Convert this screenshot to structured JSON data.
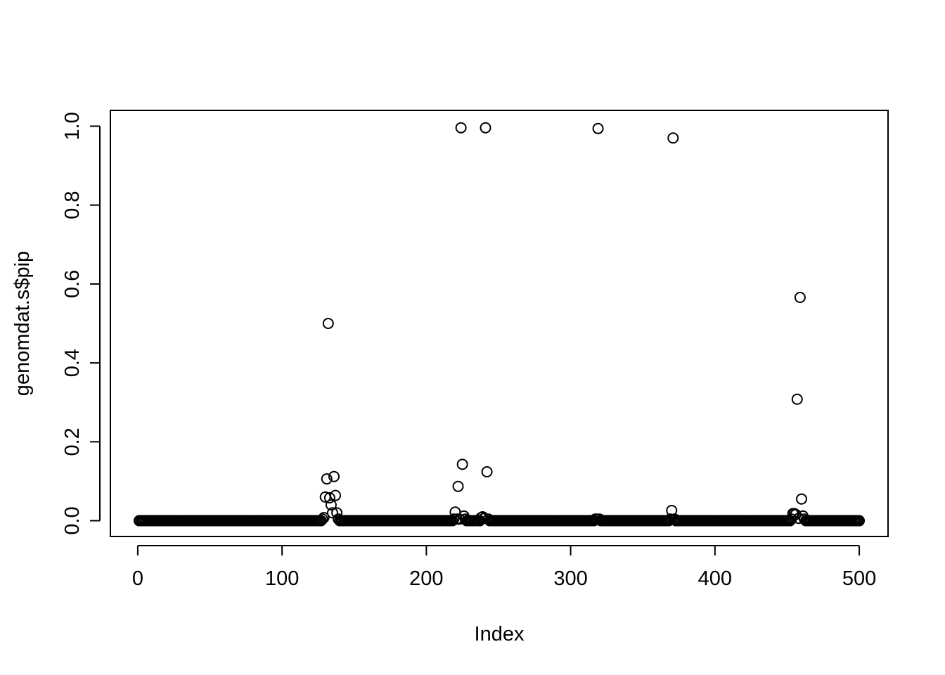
{
  "chart_data": {
    "type": "scatter",
    "title": "",
    "xlabel": "Index",
    "ylabel": "genomdat.s$pip",
    "xlim": [
      -18.96,
      519.96
    ],
    "ylim": [
      -0.04,
      1.04
    ],
    "x_ticks": [
      0,
      100,
      200,
      300,
      400,
      500
    ],
    "y_ticks": [
      0.0,
      0.2,
      0.4,
      0.6,
      0.8,
      1.0
    ],
    "x_tick_labels": [
      "0",
      "100",
      "200",
      "300",
      "400",
      "500"
    ],
    "y_tick_labels": [
      "0.0",
      "0.2",
      "0.4",
      "0.6",
      "0.8",
      "1.0"
    ],
    "grid": false,
    "legend": "none",
    "marker": "open-circle",
    "n_points": 500,
    "baseline_value": 0.0,
    "series": [
      {
        "points": [
          [
            128,
            0.004
          ],
          [
            129,
            0.008
          ],
          [
            130,
            0.06
          ],
          [
            131,
            0.106
          ],
          [
            132,
            0.5
          ],
          [
            133,
            0.058
          ],
          [
            134,
            0.04
          ],
          [
            135,
            0.02
          ],
          [
            136,
            0.112
          ],
          [
            137,
            0.064
          ],
          [
            138,
            0.02
          ],
          [
            139,
            0.004
          ],
          [
            219,
            0.004
          ],
          [
            220,
            0.022
          ],
          [
            221,
            0.004
          ],
          [
            222,
            0.087
          ],
          [
            223,
            0.004
          ],
          [
            224,
            0.996
          ],
          [
            225,
            0.143
          ],
          [
            226,
            0.012
          ],
          [
            227,
            0.004
          ],
          [
            238,
            0.008
          ],
          [
            239,
            0.01
          ],
          [
            240,
            0.006
          ],
          [
            241,
            0.996
          ],
          [
            242,
            0.124
          ],
          [
            243,
            0.004
          ],
          [
            317,
            0.004
          ],
          [
            318,
            0.004
          ],
          [
            319,
            0.994
          ],
          [
            320,
            0.004
          ],
          [
            369,
            0.004
          ],
          [
            370,
            0.026
          ],
          [
            371,
            0.97
          ],
          [
            372,
            0.004
          ],
          [
            453,
            0.004
          ],
          [
            454,
            0.018
          ],
          [
            455,
            0.018
          ],
          [
            456,
            0.016
          ],
          [
            457,
            0.308
          ],
          [
            458,
            0.006
          ],
          [
            459,
            0.566
          ],
          [
            460,
            0.055
          ],
          [
            461,
            0.012
          ],
          [
            462,
            0.004
          ]
        ]
      }
    ]
  }
}
